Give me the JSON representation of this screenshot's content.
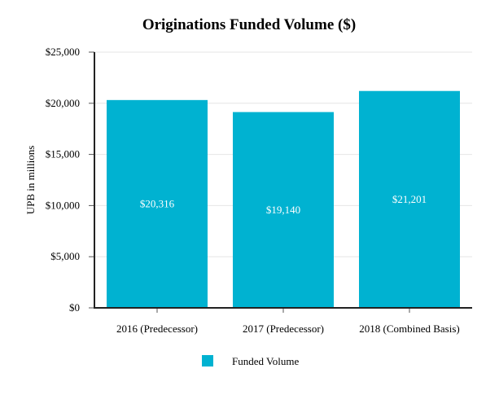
{
  "chart_data": {
    "type": "bar",
    "title": "Originations Funded Volume ($)",
    "xlabel": "",
    "ylabel": "UPB in millions",
    "categories": [
      "2016 (Predecessor)",
      "2017 (Predecessor)",
      "2018 (Combined Basis)"
    ],
    "series": [
      {
        "name": "Funded Volume",
        "values": [
          20316,
          19140,
          21201
        ],
        "labels": [
          "$20,316",
          "$19,140",
          "$21,201"
        ],
        "color": "#00B2D1"
      }
    ],
    "ylim": [
      0,
      25000
    ],
    "yticks": [
      0,
      5000,
      10000,
      15000,
      20000,
      25000
    ],
    "ytick_labels": [
      "$0",
      "$5,000",
      "$10,000",
      "$15,000",
      "$20,000",
      "$25,000"
    ],
    "grid": true,
    "legend_position": "bottom"
  }
}
